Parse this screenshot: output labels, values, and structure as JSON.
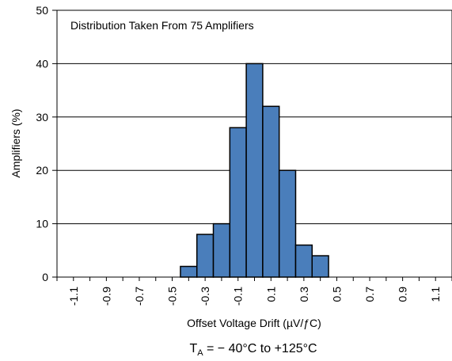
{
  "chart_data": {
    "type": "bar",
    "annotation": "Distribution Taken From 75 Amplifiers",
    "xlabel": "Offset Voltage Drift (µV/ƒC)",
    "ylabel": "Amplifiers (%)",
    "footer": {
      "prefix": "T",
      "subscript": "A",
      "rest": " =  − 40°C to +125°C"
    },
    "ylim": [
      0,
      50
    ],
    "yticks": [
      "0",
      "10",
      "20",
      "30",
      "40",
      "50"
    ],
    "xlim": [
      -1.2,
      1.2
    ],
    "bin_width": 0.1,
    "xtick_labels": [
      "-1.1",
      "-0.9",
      "-0.7",
      "-0.5",
      "-0.3",
      "-0.1",
      "0.1",
      "0.3",
      "0.5",
      "0.7",
      "0.9",
      "1.1"
    ],
    "xtick_values": [
      -1.1,
      -0.9,
      -0.7,
      -0.5,
      -0.3,
      -0.1,
      0.1,
      0.3,
      0.5,
      0.7,
      0.9,
      1.1
    ],
    "bins": [
      {
        "center": -0.4,
        "value": 2
      },
      {
        "center": -0.3,
        "value": 8
      },
      {
        "center": -0.2,
        "value": 10
      },
      {
        "center": -0.1,
        "value": 28
      },
      {
        "center": 0.0,
        "value": 40
      },
      {
        "center": 0.1,
        "value": 32
      },
      {
        "center": 0.2,
        "value": 20
      },
      {
        "center": 0.3,
        "value": 6
      },
      {
        "center": 0.4,
        "value": 4
      }
    ],
    "grid": {
      "horizontal": true,
      "vertical": false
    },
    "colors": {
      "bar_fill": "#4a7ebb",
      "bar_stroke": "#000000",
      "grid": "#000000",
      "frame": "#000000"
    }
  }
}
